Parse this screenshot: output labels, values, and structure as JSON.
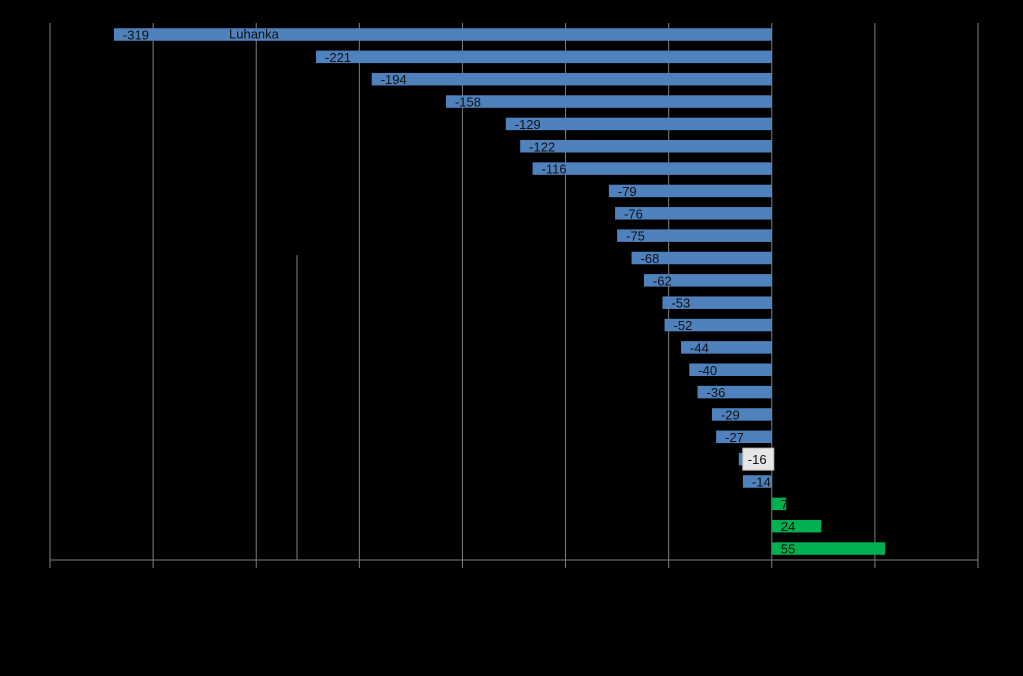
{
  "chart_data": {
    "type": "bar",
    "orientation": "horizontal",
    "title": "",
    "xlabel": "",
    "ylabel": "",
    "xlim": [
      -350,
      100
    ],
    "x_gridline_values": [
      -350,
      -300,
      -250,
      -200,
      -150,
      -100,
      -50,
      0,
      50,
      100
    ],
    "grid": true,
    "legend": "none",
    "categories": [
      "Luhanka",
      "",
      "",
      "",
      "",
      "",
      "",
      "",
      "",
      "",
      "",
      "",
      "",
      "",
      "",
      "",
      "",
      "",
      "",
      "",
      "",
      "",
      "",
      ""
    ],
    "values": [
      -319,
      -221,
      -194,
      -158,
      -129,
      -122,
      -116,
      -79,
      -76,
      -75,
      -68,
      -62,
      -53,
      -52,
      -44,
      -40,
      -36,
      -29,
      -27,
      -16,
      -14,
      7,
      24,
      55
    ],
    "highlight_value": -16,
    "colors": {
      "negative": "#4f81bd",
      "positive": "#00b050",
      "grid": "#7f7f7f",
      "highlight_box": "#e6e6e6",
      "background": "#000000",
      "label_text": "#111111"
    }
  }
}
